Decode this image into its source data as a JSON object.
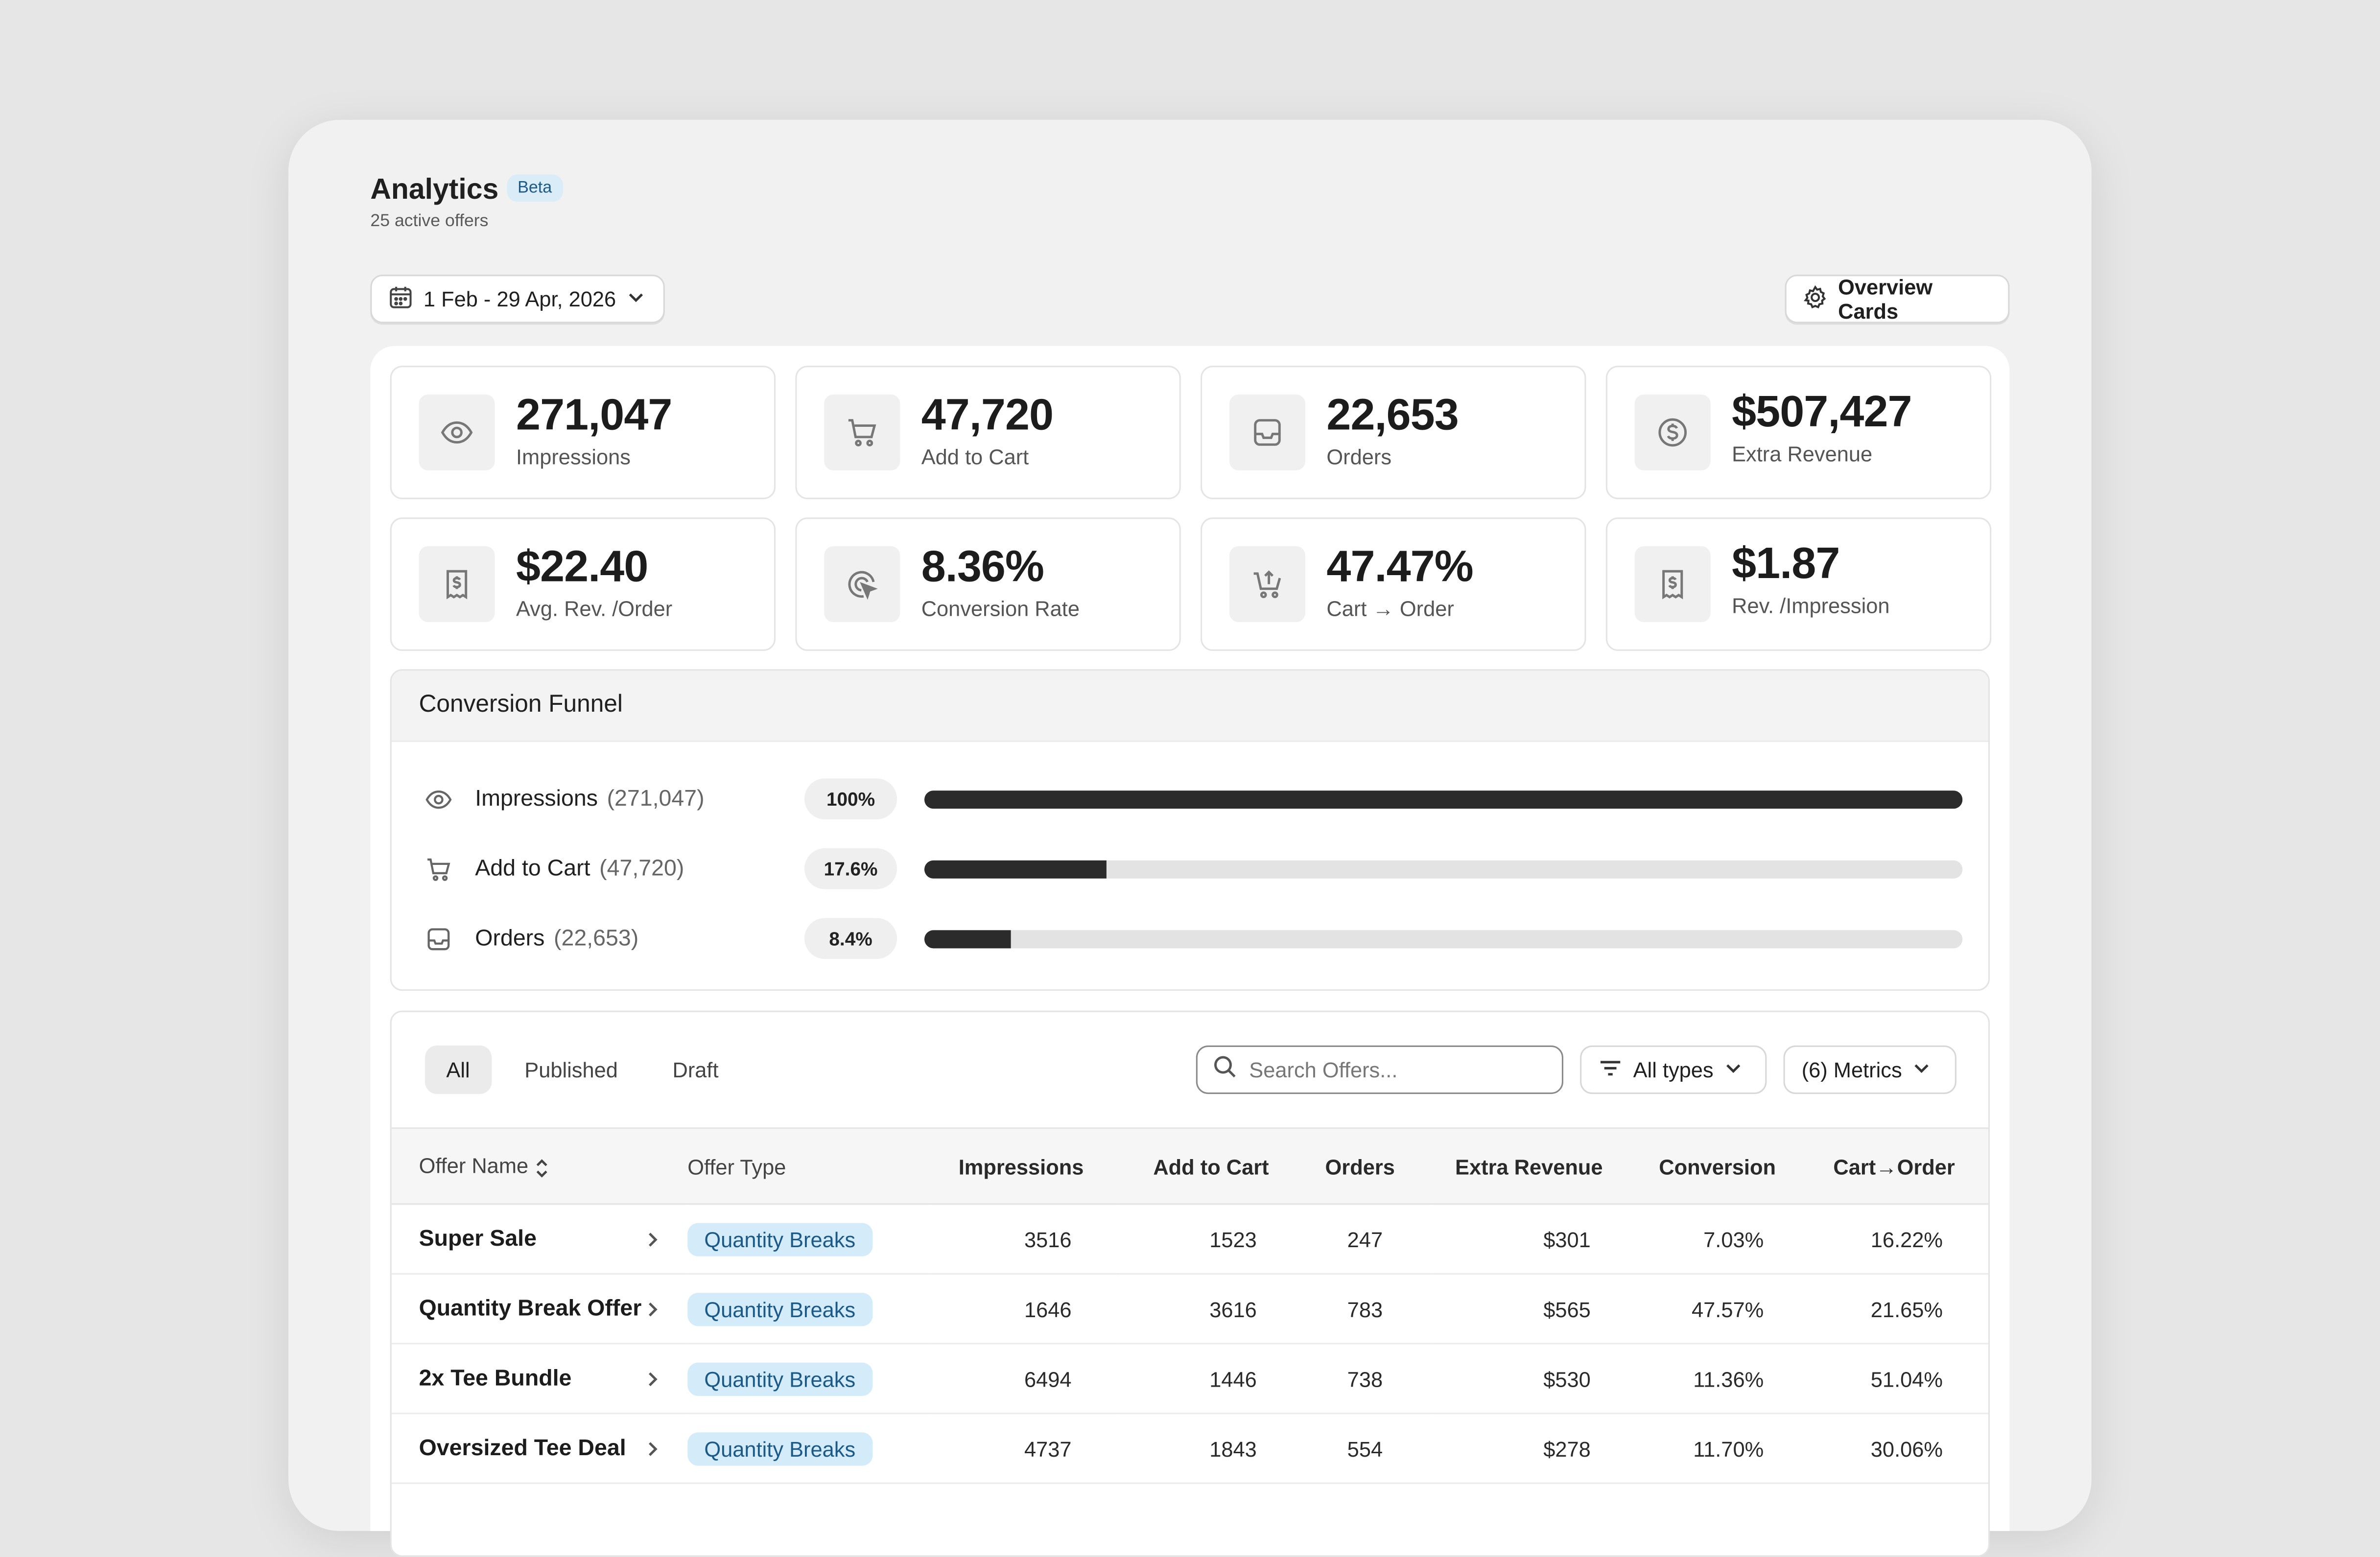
{
  "header": {
    "title": "Analytics",
    "beta_label": "Beta",
    "subtitle": "25 active offers"
  },
  "toolbar": {
    "date_range": "1 Feb - 29 Apr, 2026",
    "overview_label": "Overview Cards"
  },
  "stats": [
    {
      "value": "271,047",
      "label": "Impressions",
      "icon": "eye-icon"
    },
    {
      "value": "47,720",
      "label": "Add to Cart",
      "icon": "cart-icon"
    },
    {
      "value": "22,653",
      "label": "Orders",
      "icon": "inbox-icon"
    },
    {
      "value": "$507,427",
      "label": "Extra Revenue",
      "icon": "dollar-circle-icon"
    },
    {
      "value": "$22.40",
      "label": "Avg. Rev. /Order",
      "icon": "receipt-icon"
    },
    {
      "value": "8.36%",
      "label": "Conversion Rate",
      "icon": "target-cursor-icon"
    },
    {
      "value": "47.47%",
      "label": "Cart → Order",
      "icon": "cart-upload-icon"
    },
    {
      "value": "$1.87",
      "label": "Rev. /Impression",
      "icon": "receipt-icon"
    }
  ],
  "funnel": {
    "title": "Conversion Funnel",
    "rows": [
      {
        "label": "Impressions",
        "count": "(271,047)",
        "percent": "100%",
        "fraction": 1.0,
        "icon": "eye-icon"
      },
      {
        "label": "Add to Cart",
        "count": "(47,720)",
        "percent": "17.6%",
        "fraction": 0.176,
        "icon": "cart-icon"
      },
      {
        "label": "Orders",
        "count": "(22,653)",
        "percent": "8.4%",
        "fraction": 0.084,
        "icon": "inbox-icon"
      }
    ]
  },
  "filters": {
    "tabs": [
      "All",
      "Published",
      "Draft"
    ],
    "search_placeholder": "Search Offers...",
    "type_filter": "All types",
    "metrics_label": "(6) Metrics"
  },
  "table": {
    "columns": [
      "Offer Name",
      "Offer Type",
      "Impressions",
      "Add to Cart",
      "Orders",
      "Extra Revenue",
      "Conversion",
      "Cart→Order"
    ],
    "rows": [
      {
        "name": "Super Sale",
        "type": "Quantity Breaks",
        "impressions": "3516",
        "add_to_cart": "1523",
        "orders": "247",
        "revenue": "$301",
        "conversion": "7.03%",
        "cart_order": "16.22%"
      },
      {
        "name": "Quantity Break Offer",
        "type": "Quantity Breaks",
        "impressions": "1646",
        "add_to_cart": "3616",
        "orders": "783",
        "revenue": "$565",
        "conversion": "47.57%",
        "cart_order": "21.65%"
      },
      {
        "name": "2x Tee Bundle",
        "type": "Quantity Breaks",
        "impressions": "6494",
        "add_to_cart": "1446",
        "orders": "738",
        "revenue": "$530",
        "conversion": "11.36%",
        "cart_order": "51.04%"
      },
      {
        "name": "Oversized Tee Deal",
        "type": "Quantity Breaks",
        "impressions": "4737",
        "add_to_cart": "1843",
        "orders": "554",
        "revenue": "$278",
        "conversion": "11.70%",
        "cart_order": "30.06%"
      }
    ]
  }
}
